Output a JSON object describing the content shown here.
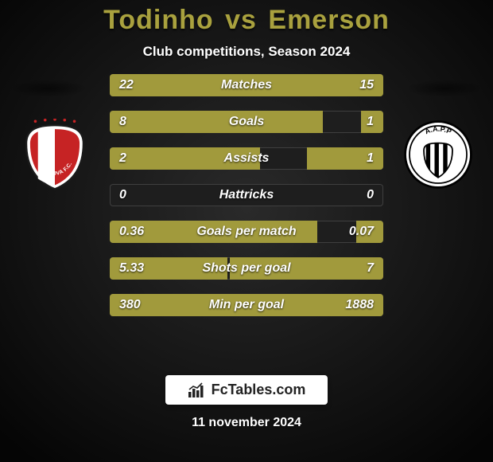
{
  "title": {
    "player1": "Todinho",
    "vs": "vs",
    "player2": "Emerson",
    "color": "#a9a13e"
  },
  "subtitle": "Club competitions, Season 2024",
  "background": {
    "top_from": "#0d0d0d",
    "top_to": "#222222",
    "bottom_from": "#1a1a1a",
    "bottom_to": "#0a0a0a"
  },
  "bar_style": {
    "track_color": "#1e1e1e",
    "left_fill": "#a19a3c",
    "right_fill": "#a19a3c",
    "height": 28,
    "border_radius": 4
  },
  "stats": [
    {
      "label": "Matches",
      "left_val": "22",
      "right_val": "15",
      "left_pct": 59,
      "right_pct": 41
    },
    {
      "label": "Goals",
      "left_val": "8",
      "right_val": "1",
      "left_pct": 78,
      "right_pct": 8
    },
    {
      "label": "Assists",
      "left_val": "2",
      "right_val": "1",
      "left_pct": 55,
      "right_pct": 28
    },
    {
      "label": "Hattricks",
      "left_val": "0",
      "right_val": "0",
      "left_pct": 0,
      "right_pct": 0
    },
    {
      "label": "Goals per match",
      "left_val": "0.36",
      "right_val": "0.07",
      "left_pct": 76,
      "right_pct": 10
    },
    {
      "label": "Shots per goal",
      "left_val": "5.33",
      "right_val": "7",
      "left_pct": 43,
      "right_pct": 56
    },
    {
      "label": "Min per goal",
      "left_val": "380",
      "right_val": "1888",
      "left_pct": 17,
      "right_pct": 83
    }
  ],
  "clubs": {
    "left": {
      "name": "Vila Nova F.C.",
      "shield_fill": "#c62324",
      "shield_stroke": "#ffffff",
      "text": "VILA NOVA F.C."
    },
    "right": {
      "name": "A.A.P.P. Ponte Preta",
      "circle_fill": "#ffffff",
      "stripes": "#000000",
      "text": "A.A.P.P"
    }
  },
  "brand": {
    "text": "FcTables.com",
    "icon": "chart-icon"
  },
  "date": "11 november 2024"
}
